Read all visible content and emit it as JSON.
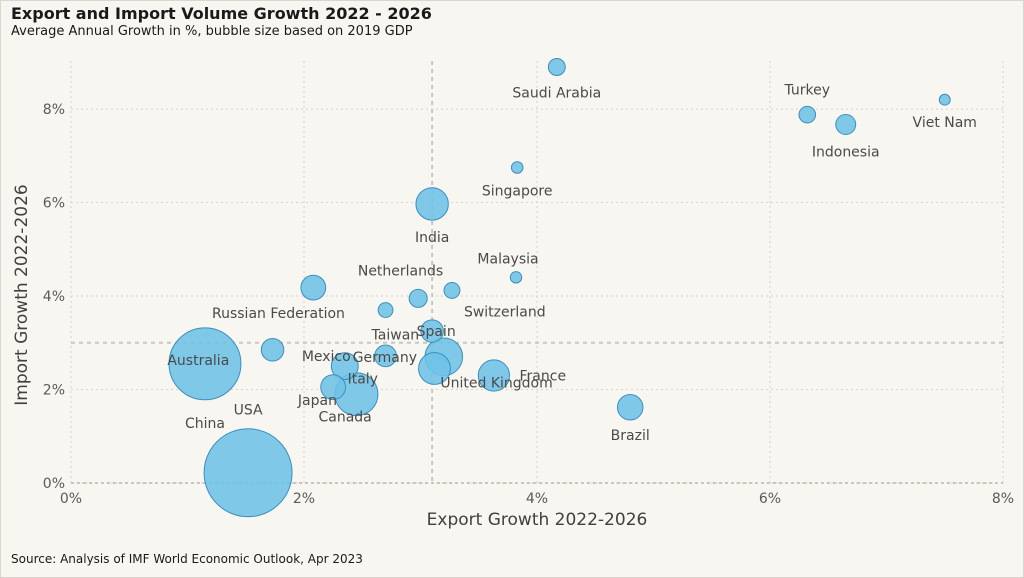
{
  "header": {
    "title": "Export and Import Volume Growth 2022 - 2026",
    "subtitle": "Average Annual Growth in %, bubble size based on 2019 GDP"
  },
  "footer": {
    "source": "Source: Analysis of IMF World Economic Outlook, Apr 2023"
  },
  "colors": {
    "bubble_fill": "#6ec1e6",
    "bubble_stroke": "#3b8fbd",
    "background": "#f8f6f1",
    "grid": "#d6d3cc"
  },
  "chart_data": {
    "type": "scatter",
    "title": "Export and Import Volume Growth 2022 - 2026",
    "subtitle": "Average Annual Growth in %, bubble size based on 2019 GDP",
    "xlabel": "Export Growth 2022-2026",
    "ylabel": "Import Growth 2022-2026",
    "xlim": [
      0,
      8
    ],
    "ylim": [
      0,
      8.9
    ],
    "x_ticks": [
      0,
      2,
      4,
      6,
      8
    ],
    "y_ticks": [
      0,
      2,
      4,
      6,
      8
    ],
    "x_tick_labels": [
      "0%",
      "2%",
      "4%",
      "6%",
      "8%"
    ],
    "y_tick_labels": [
      "0%",
      "2%",
      "4%",
      "6%",
      "8%"
    ],
    "reference_lines": {
      "x": 3.1,
      "y": 3.0
    },
    "grid": true,
    "legend": "none",
    "points": [
      {
        "label": "USA",
        "x": 1.52,
        "y": 0.22,
        "gdp": 21.4
      },
      {
        "label": "China",
        "x": 1.15,
        "y": 2.55,
        "gdp": 14.3
      },
      {
        "label": "Japan",
        "x": 2.45,
        "y": 1.9,
        "gdp": 5.1
      },
      {
        "label": "Germany",
        "x": 3.2,
        "y": 2.7,
        "gdp": 3.9
      },
      {
        "label": "India",
        "x": 3.1,
        "y": 5.97,
        "gdp": 2.9
      },
      {
        "label": "United Kingdom",
        "x": 3.12,
        "y": 2.45,
        "gdp": 2.8
      },
      {
        "label": "France",
        "x": 3.63,
        "y": 2.3,
        "gdp": 2.7
      },
      {
        "label": "Italy",
        "x": 2.35,
        "y": 2.5,
        "gdp": 2.0
      },
      {
        "label": "Brazil",
        "x": 4.8,
        "y": 1.62,
        "gdp": 1.8
      },
      {
        "label": "Canada",
        "x": 2.25,
        "y": 2.05,
        "gdp": 1.7
      },
      {
        "label": "Russian Federation",
        "x": 2.08,
        "y": 4.18,
        "gdp": 1.7
      },
      {
        "label": "Spain",
        "x": 3.1,
        "y": 3.25,
        "gdp": 1.4
      },
      {
        "label": "Australia",
        "x": 1.73,
        "y": 2.85,
        "gdp": 1.4
      },
      {
        "label": "Mexico",
        "x": 2.7,
        "y": 2.72,
        "gdp": 1.3
      },
      {
        "label": "Indonesia",
        "x": 6.65,
        "y": 7.67,
        "gdp": 1.1
      },
      {
        "label": "Netherlands",
        "x": 2.98,
        "y": 3.95,
        "gdp": 0.9
      },
      {
        "label": "Saudi Arabia",
        "x": 4.17,
        "y": 8.9,
        "gdp": 0.79
      },
      {
        "label": "Turkey",
        "x": 6.32,
        "y": 7.88,
        "gdp": 0.76
      },
      {
        "label": "Switzerland",
        "x": 3.27,
        "y": 4.12,
        "gdp": 0.7
      },
      {
        "label": "Taiwan",
        "x": 2.7,
        "y": 3.7,
        "gdp": 0.61
      },
      {
        "label": "Malaysia",
        "x": 3.82,
        "y": 4.4,
        "gdp": 0.36
      },
      {
        "label": "Singapore",
        "x": 3.83,
        "y": 6.75,
        "gdp": 0.37
      },
      {
        "label": "Viet Nam",
        "x": 7.5,
        "y": 8.2,
        "gdp": 0.33
      }
    ]
  }
}
